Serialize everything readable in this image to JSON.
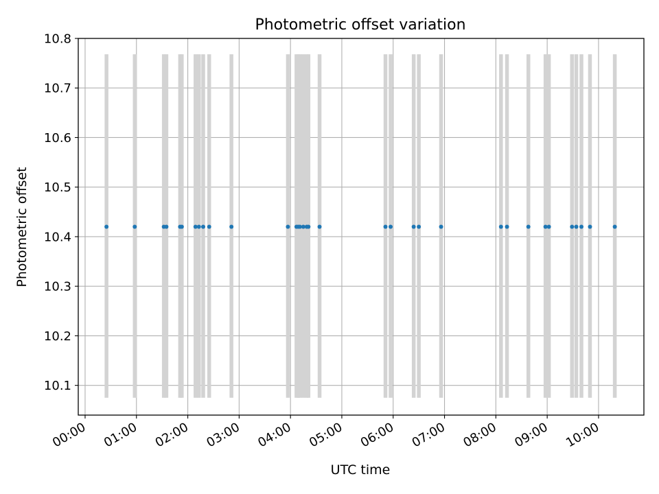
{
  "chart_data": {
    "type": "scatter",
    "title": "Photometric offset variation",
    "xlabel": "UTC time",
    "ylabel": "Photometric offset",
    "xlim": [
      "23:52",
      "10:53"
    ],
    "ylim": [
      10.04,
      10.8
    ],
    "grid": true,
    "yticks": [
      10.1,
      10.2,
      10.3,
      10.4,
      10.5,
      10.6,
      10.7,
      10.8
    ],
    "xticks": [
      "00:00",
      "01:00",
      "02:00",
      "03:00",
      "04:00",
      "05:00",
      "06:00",
      "07:00",
      "08:00",
      "09:00",
      "10:00"
    ],
    "series": [
      {
        "x": [
          "00:25",
          "00:58",
          "01:32",
          "01:35",
          "01:51",
          "01:53",
          "02:09",
          "02:13",
          "02:18",
          "02:25",
          "02:51",
          "03:57",
          "04:07",
          "04:09",
          "04:11",
          "04:15",
          "04:19",
          "04:21",
          "04:34",
          "05:51",
          "05:57",
          "06:24",
          "06:30",
          "06:56",
          "08:06",
          "08:13",
          "08:38",
          "08:58",
          "09:02",
          "09:29",
          "09:34",
          "09:40",
          "09:50",
          "10:19"
        ],
        "y": [
          10.42,
          10.42,
          10.42,
          10.42,
          10.42,
          10.42,
          10.42,
          10.42,
          10.42,
          10.42,
          10.42,
          10.42,
          10.42,
          10.42,
          10.42,
          10.42,
          10.42,
          10.42,
          10.42,
          10.42,
          10.42,
          10.42,
          10.42,
          10.42,
          10.42,
          10.42,
          10.42,
          10.42,
          10.42,
          10.42,
          10.42,
          10.42,
          10.42,
          10.42
        ],
        "error_low": 10.075,
        "error_high": 10.768,
        "marker_color": "#1f77b4",
        "error_color": "#d3d3d3"
      }
    ]
  }
}
